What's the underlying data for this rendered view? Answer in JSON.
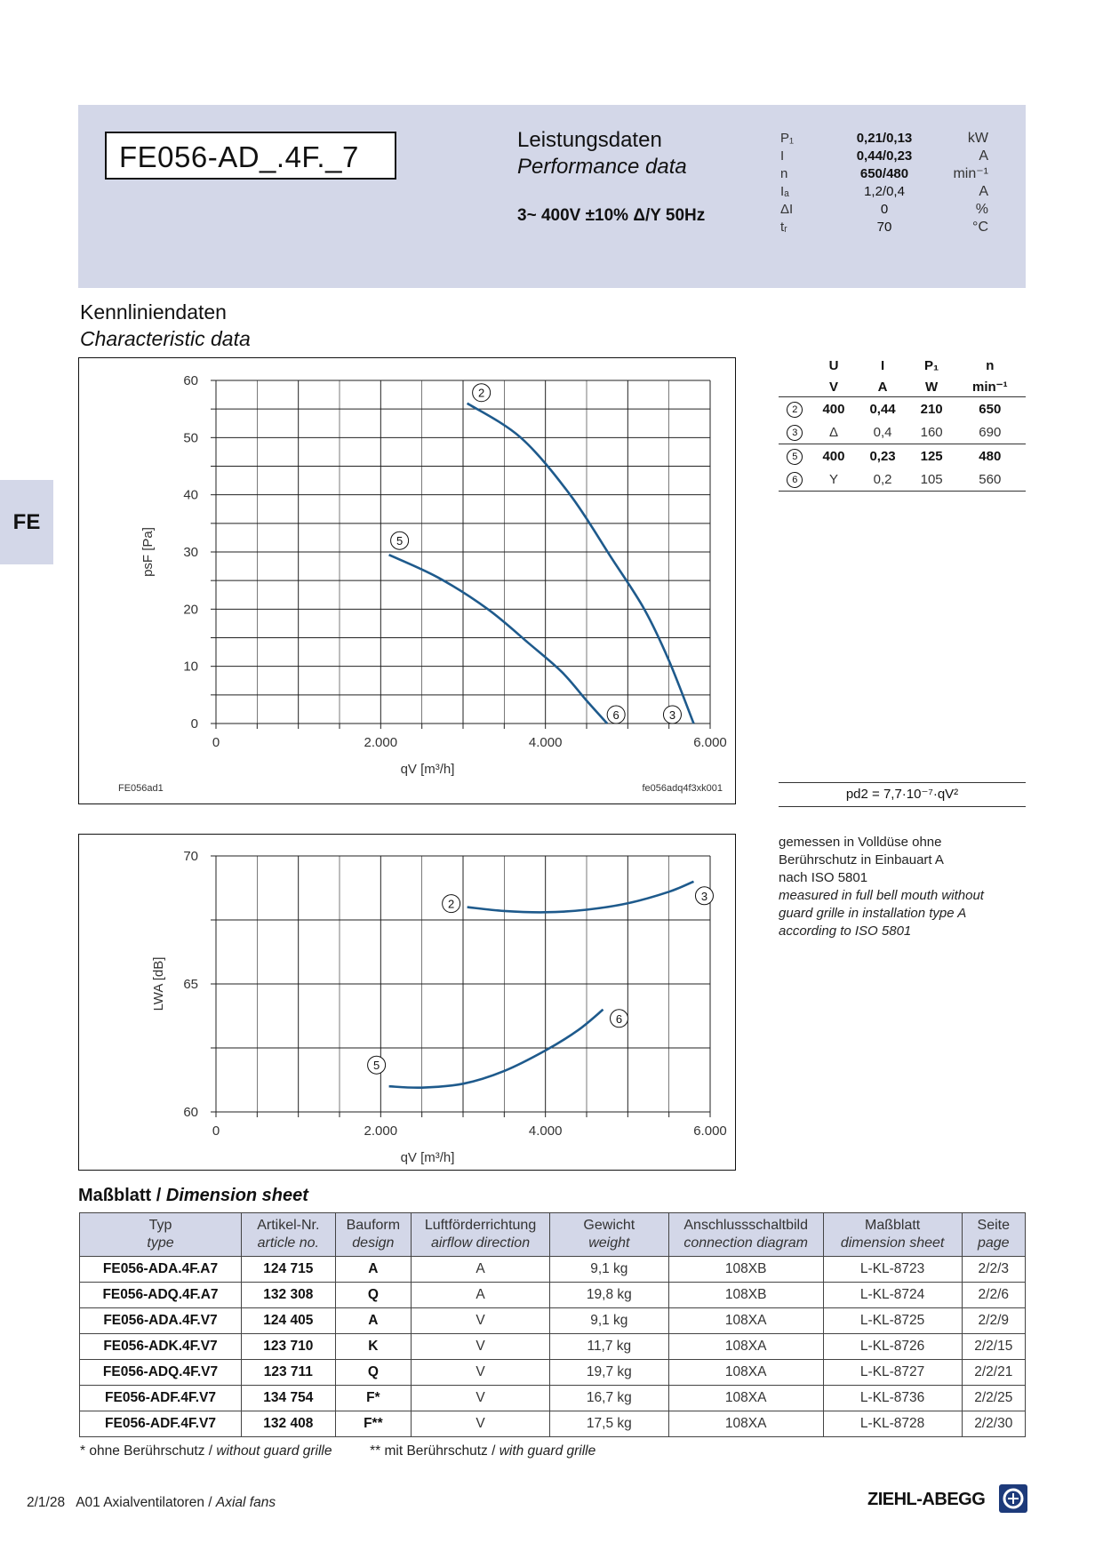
{
  "header": {
    "model": "FE056-AD_.4F._7",
    "title_de": "Leistungsdaten",
    "title_en": "Performance data",
    "voltage": "3~ 400V ±10% Δ/Y 50Hz",
    "specs": [
      {
        "symbol": "P₁",
        "value": "0,21/0,13",
        "unit": "kW",
        "bold": true
      },
      {
        "symbol": "I",
        "value": "0,44/0,23",
        "unit": "A",
        "bold": true
      },
      {
        "symbol": "n",
        "value": "650/480",
        "unit": "min⁻¹",
        "bold": true
      },
      {
        "symbol": "Iₐ",
        "value": "1,2/0,4",
        "unit": "A",
        "bold": false
      },
      {
        "symbol": "ΔI",
        "value": "0",
        "unit": "%",
        "bold": false
      },
      {
        "symbol": "tᵣ",
        "value": "70",
        "unit": "°C",
        "bold": false
      }
    ]
  },
  "side_tab": "FE",
  "section": {
    "title_de": "Kennliniendaten",
    "title_en": "Characteristic data"
  },
  "chart_data": [
    {
      "type": "line",
      "xlabel": "qV [m³/h]",
      "ylabel": "psF [Pa]",
      "xlim": [
        0,
        6000
      ],
      "ylim": [
        0,
        60
      ],
      "xticks": [
        "0",
        "2.000",
        "4.000",
        "6.000"
      ],
      "yticks": [
        "0",
        "10",
        "20",
        "30",
        "40",
        "50",
        "60"
      ],
      "grid": true,
      "note_left": "FE056ad1",
      "note_right": "fe056adq4f3xk001",
      "series": [
        {
          "name": "2-3",
          "start_label": "2",
          "end_label": "3",
          "x": [
            3050,
            3700,
            4300,
            4800,
            5200,
            5500,
            5800
          ],
          "y": [
            56,
            50,
            40,
            29,
            20,
            11,
            0
          ]
        },
        {
          "name": "5-6",
          "start_label": "5",
          "end_label": "6",
          "x": [
            2100,
            2700,
            3300,
            3800,
            4200,
            4500,
            4750
          ],
          "y": [
            29.5,
            25.5,
            20,
            14,
            9,
            4,
            0
          ]
        }
      ]
    },
    {
      "type": "line",
      "xlabel": "qV [m³/h]",
      "ylabel": "LWA [dB]",
      "xlim": [
        0,
        6000
      ],
      "ylim": [
        60,
        70
      ],
      "xticks": [
        "0",
        "2.000",
        "4.000",
        "6.000"
      ],
      "yticks": [
        "60",
        "65",
        "70"
      ],
      "grid": true,
      "series": [
        {
          "name": "2-3",
          "start_label": "2",
          "end_label": "3",
          "x": [
            3050,
            3500,
            4000,
            4500,
            5000,
            5500,
            5800
          ],
          "y": [
            68.0,
            67.85,
            67.8,
            67.9,
            68.15,
            68.6,
            69.0
          ]
        },
        {
          "name": "5-6",
          "start_label": "5",
          "end_label": "6",
          "x": [
            2100,
            2500,
            3000,
            3500,
            4000,
            4400,
            4700
          ],
          "y": [
            61.0,
            60.95,
            61.1,
            61.6,
            62.4,
            63.2,
            64.0
          ]
        }
      ]
    }
  ],
  "op_table": {
    "headers": [
      "",
      "U",
      "I",
      "P₁",
      "n"
    ],
    "units": [
      "",
      "V",
      "A",
      "W",
      "min⁻¹"
    ],
    "rows": [
      {
        "point": "2",
        "U": "400",
        "I": "0,44",
        "P": "210",
        "n": "650",
        "bold": true
      },
      {
        "point": "3",
        "U": "Δ",
        "I": "0,4",
        "P": "160",
        "n": "690",
        "bold": false
      },
      {
        "point": "5",
        "U": "400",
        "I": "0,23",
        "P": "125",
        "n": "480",
        "bold": true
      },
      {
        "point": "6",
        "U": "Y",
        "I": "0,2",
        "P": "105",
        "n": "560",
        "bold": false
      }
    ]
  },
  "formula": "pd2 = 7,7·10⁻⁷·qV²",
  "measurement_note": {
    "de": [
      "gemessen in Volldüse ohne",
      "Berührschutz in Einbauart A",
      "nach ISO 5801"
    ],
    "en": [
      "measured in full bell mouth without",
      "guard grille in installation type A",
      "according to ISO 5801"
    ]
  },
  "dimension_sheet": {
    "title_de": "Maßblatt / ",
    "title_en": "Dimension sheet",
    "columns": [
      {
        "de": "Typ",
        "en": "type"
      },
      {
        "de": "Artikel-Nr.",
        "en": "article no."
      },
      {
        "de": "Bauform",
        "en": "design"
      },
      {
        "de": "Luftförderrichtung",
        "en": "airflow direction"
      },
      {
        "de": "Gewicht",
        "en": "weight"
      },
      {
        "de": "Anschlussschaltbild",
        "en": "connection diagram"
      },
      {
        "de": "Maßblatt",
        "en": "dimension sheet"
      },
      {
        "de": "Seite",
        "en": "page"
      }
    ],
    "rows": [
      [
        "FE056-ADA.4F.A7",
        "124 715",
        "A",
        "A",
        "9,1 kg",
        "108XB",
        "L-KL-8723",
        "2/2/3"
      ],
      [
        "FE056-ADQ.4F.A7",
        "132 308",
        "Q",
        "A",
        "19,8 kg",
        "108XB",
        "L-KL-8724",
        "2/2/6"
      ],
      [
        "FE056-ADA.4F.V7",
        "124 405",
        "A",
        "V",
        "9,1 kg",
        "108XA",
        "L-KL-8725",
        "2/2/9"
      ],
      [
        "FE056-ADK.4F.V7",
        "123 710",
        "K",
        "V",
        "11,7 kg",
        "108XA",
        "L-KL-8726",
        "2/2/15"
      ],
      [
        "FE056-ADQ.4F.V7",
        "123 711",
        "Q",
        "V",
        "19,7 kg",
        "108XA",
        "L-KL-8727",
        "2/2/21"
      ],
      [
        "FE056-ADF.4F.V7",
        "134 754",
        "F*",
        "V",
        "16,7 kg",
        "108XA",
        "L-KL-8736",
        "2/2/25"
      ],
      [
        "FE056-ADF.4F.V7",
        "132 408",
        "F**",
        "V",
        "17,5 kg",
        "108XA",
        "L-KL-8728",
        "2/2/30"
      ]
    ],
    "footnote1_de": "* ohne Berührschutz / ",
    "footnote1_en": "without guard grille",
    "footnote2_de": "** mit Berührschutz / ",
    "footnote2_en": "with guard grille"
  },
  "footer": {
    "page": "2/1/28",
    "text_de": "A01 Axialventilatoren / ",
    "text_en": "Axial fans"
  },
  "brand": "ZIEHL-ABEGG",
  "colors": {
    "curve": "#1e5a8c",
    "header_band": "#d3d7e8"
  }
}
